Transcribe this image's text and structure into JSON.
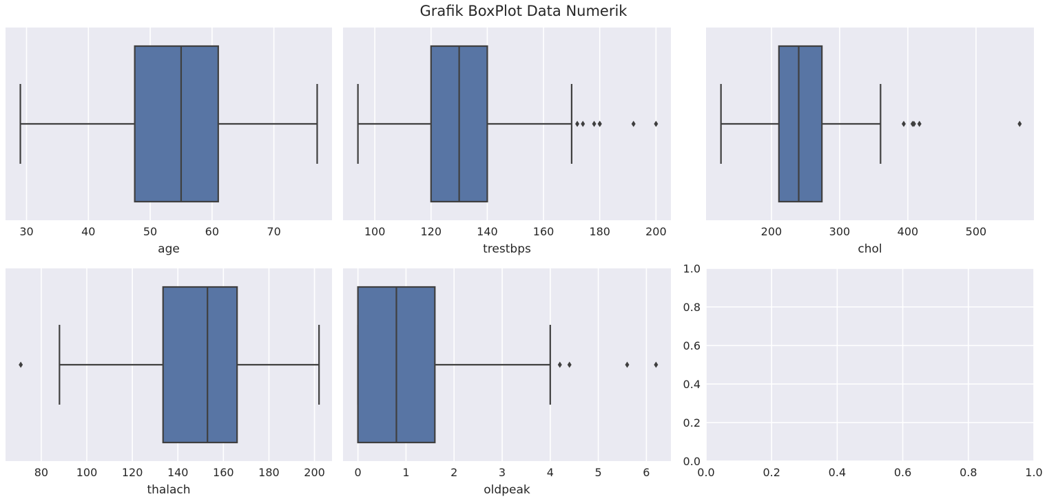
{
  "figure": {
    "title": "Grafik BoxPlot Data Numerik"
  },
  "colors": {
    "panel_bg": "#EAEAF2",
    "grid": "#FFFFFF",
    "box_fill": "#5875A4",
    "line": "#3F3F3F",
    "text": "#262626"
  },
  "chart_data": [
    {
      "type": "box",
      "xlabel": "age",
      "xlim": [
        26.6,
        79.4
      ],
      "xticks": [
        30,
        40,
        50,
        60,
        70
      ],
      "stats": {
        "whislo": 29,
        "q1": 47.5,
        "med": 55,
        "q3": 61,
        "whishi": 77
      },
      "fliers": []
    },
    {
      "type": "box",
      "xlabel": "trestbps",
      "xlim": [
        88.7,
        205.3
      ],
      "xticks": [
        100,
        120,
        140,
        160,
        180,
        200
      ],
      "stats": {
        "whislo": 94,
        "q1": 120,
        "med": 130,
        "q3": 140,
        "whishi": 170
      },
      "fliers": [
        172,
        174,
        178,
        180,
        180,
        192,
        200
      ]
    },
    {
      "type": "box",
      "xlabel": "chol",
      "xlim": [
        104.1,
        584.9
      ],
      "xticks": [
        200,
        300,
        400,
        500
      ],
      "stats": {
        "whislo": 126,
        "q1": 211,
        "med": 240,
        "q3": 274,
        "whishi": 360
      },
      "fliers": [
        394,
        407,
        409,
        417,
        564
      ]
    },
    {
      "type": "box",
      "xlabel": "thalach",
      "xlim": [
        64.3,
        207.7
      ],
      "xticks": [
        80,
        100,
        120,
        140,
        160,
        180,
        200
      ],
      "stats": {
        "whislo": 88,
        "q1": 133.5,
        "med": 153,
        "q3": 166,
        "whishi": 202
      },
      "fliers": [
        71
      ]
    },
    {
      "type": "box",
      "xlabel": "oldpeak",
      "xlim": [
        -0.31,
        6.51
      ],
      "xticks": [
        0,
        1,
        2,
        3,
        4,
        5,
        6
      ],
      "stats": {
        "whislo": 0,
        "q1": 0,
        "med": 0.8,
        "q3": 1.6,
        "whishi": 4.0
      },
      "fliers": [
        4.2,
        4.4,
        5.6,
        6.2
      ]
    },
    {
      "type": "empty",
      "xlim": [
        0,
        1
      ],
      "ylim": [
        0,
        1
      ],
      "xticks": [
        0.0,
        0.2,
        0.4,
        0.6,
        0.8,
        1.0
      ],
      "yticks": [
        0.0,
        0.2,
        0.4,
        0.6,
        0.8,
        1.0
      ],
      "xtick_labels": [
        "0.0",
        "0.2",
        "0.4",
        "0.6",
        "0.8",
        "1.0"
      ],
      "ytick_labels": [
        "0.0",
        "0.2",
        "0.4",
        "0.6",
        "0.8",
        "1.0"
      ]
    }
  ]
}
